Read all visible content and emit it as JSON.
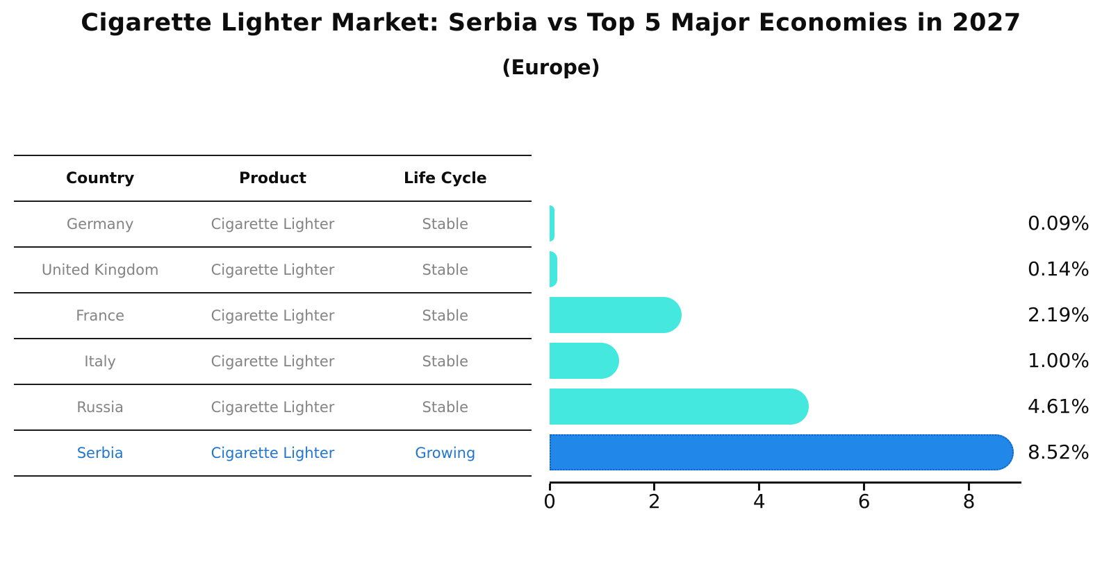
{
  "title": "Cigarette Lighter Market: Serbia vs Top 5 Major Economies in 2027",
  "subtitle": "(Europe)",
  "table": {
    "headers": [
      "Country",
      "Product",
      "Life Cycle"
    ],
    "rows": [
      {
        "country": "Germany",
        "product": "Cigarette Lighter",
        "life_cycle": "Stable",
        "highlighted": false
      },
      {
        "country": "United Kingdom",
        "product": "Cigarette Lighter",
        "life_cycle": "Stable",
        "highlighted": false
      },
      {
        "country": "France",
        "product": "Cigarette Lighter",
        "life_cycle": "Stable",
        "highlighted": false
      },
      {
        "country": "Italy",
        "product": "Cigarette Lighter",
        "life_cycle": "Stable",
        "highlighted": false
      },
      {
        "country": "Russia",
        "product": "Cigarette Lighter",
        "life_cycle": "Stable",
        "highlighted": false
      },
      {
        "country": "Serbia",
        "product": "Cigarette Lighter",
        "life_cycle": "Growing",
        "highlighted": true
      }
    ]
  },
  "chart_data": {
    "type": "bar",
    "orientation": "horizontal",
    "categories": [
      "Germany",
      "United Kingdom",
      "France",
      "Italy",
      "Russia",
      "Serbia"
    ],
    "values": [
      0.09,
      0.14,
      2.19,
      1.0,
      4.61,
      8.52
    ],
    "value_labels": [
      "0.09%",
      "0.14%",
      "2.19%",
      "1.00%",
      "4.61%",
      "8.52%"
    ],
    "x_ticks": [
      "0",
      "2",
      "4",
      "6",
      "8"
    ],
    "xlim": [
      0,
      9
    ],
    "grid": false,
    "legend": false,
    "highlight_index": 5,
    "bar_color": "#45e8de",
    "highlight_bar_color": "#2187e8",
    "highlight_border_color": "#0c62c4",
    "highlight_text_color": "#2176ce",
    "muted_text_color": "#838383"
  }
}
